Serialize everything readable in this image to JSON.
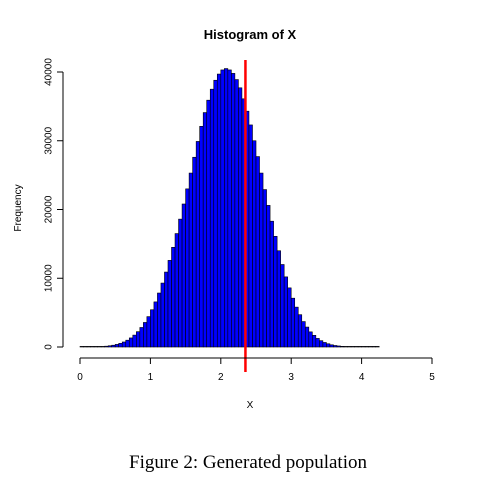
{
  "caption": "Figure 2:  Generated population",
  "chart_data": {
    "type": "bar",
    "subtype": "histogram",
    "title": "Histogram of X",
    "xlabel": "X",
    "ylabel": "Frequency",
    "xlim": [
      0,
      5
    ],
    "ylim": [
      0,
      40000
    ],
    "x_ticks": [
      0,
      1,
      2,
      3,
      4,
      5
    ],
    "x_tick_labels": [
      "0",
      "1",
      "2",
      "3",
      "4",
      "5"
    ],
    "y_ticks": [
      0,
      10000,
      20000,
      30000,
      40000
    ],
    "y_tick_labels": [
      "0",
      "10000",
      "20000",
      "30000",
      "40000"
    ],
    "bin_width": 0.05,
    "bin_start": 0.0,
    "values": [
      0,
      0,
      10,
      20,
      30,
      50,
      80,
      120,
      180,
      260,
      380,
      530,
      730,
      990,
      1320,
      1730,
      2230,
      2840,
      3570,
      4420,
      5420,
      6560,
      7850,
      9300,
      10900,
      12600,
      14500,
      16500,
      18600,
      20800,
      23000,
      25300,
      27600,
      29900,
      32100,
      34100,
      35900,
      37500,
      38800,
      39700,
      40300,
      40500,
      40300,
      39800,
      38900,
      37700,
      36100,
      34300,
      32300,
      30000,
      27700,
      25300,
      22900,
      20600,
      18300,
      16100,
      14000,
      12000,
      10200,
      8600,
      7100,
      5800,
      4700,
      3700,
      2900,
      2200,
      1700,
      1250,
      920,
      660,
      470,
      320,
      220,
      150,
      100,
      65,
      40,
      25,
      15,
      10,
      6,
      4,
      2,
      1,
      1
    ],
    "bar_fill": "#0000ff",
    "bar_edge": "#000000",
    "vline": {
      "x": 2.35,
      "color": "#ff0000"
    },
    "grid": false
  }
}
